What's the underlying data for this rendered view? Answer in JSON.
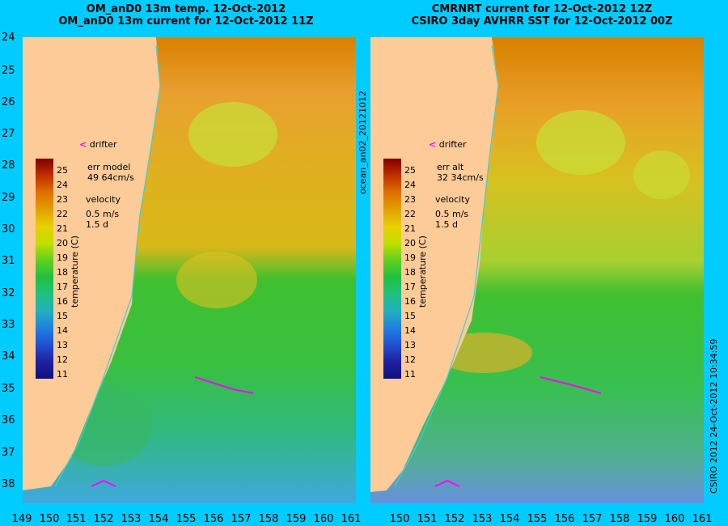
{
  "left_title": {
    "line1": "OM_anD0 13m temp. 12-Oct-2012",
    "line2": "OM_anD0 13m current for 12-Oct-2012 11Z"
  },
  "right_title": {
    "line1": "CMRNRT current for 12-Oct-2012 12Z",
    "line2": "CSIRO 3day AVHRR SST for 12-Oct-2012 00Z"
  },
  "y_ticks": [
    "24",
    "25",
    "26",
    "27",
    "28",
    "29",
    "30",
    "31",
    "32",
    "33",
    "34",
    "35",
    "36",
    "37",
    "38"
  ],
  "x_ticks": [
    "149",
    "150",
    "151",
    "152",
    "153",
    "154",
    "155",
    "156",
    "157",
    "158",
    "159",
    "160",
    "161"
  ],
  "x_ticks_right": [
    "150",
    "151",
    "152",
    "153",
    "154",
    "155",
    "156",
    "157",
    "158",
    "159",
    "160",
    "161"
  ],
  "left_legend": {
    "drifter": "drifter",
    "err_label": "err model",
    "err_value": "49 64cm/s",
    "velocity_label": "velocity",
    "velocity_value": "0.5 m/s",
    "velocity_time": "1.5 d"
  },
  "right_legend": {
    "drifter": "drifter",
    "err_label": "err alt",
    "err_value": "32 34cm/s",
    "velocity_label": "velocity",
    "velocity_value": "0.5 m/s",
    "velocity_time": "1.5 d"
  },
  "colorbar": {
    "label": "temperature (C)",
    "ticks": [
      "25",
      "24",
      "23",
      "22",
      "21",
      "20",
      "19",
      "18",
      "17",
      "16",
      "15",
      "14",
      "13",
      "12",
      "11"
    ]
  },
  "side_text": {
    "middle": "ocean_an02_20121012",
    "right": "CSIRO 2012   24-Oct-2012 10:34:59"
  },
  "colors": {
    "background": "#00ccff",
    "land": "#fccb98",
    "warm": "#e08a10",
    "mid": "#d8d020",
    "green": "#38c030",
    "cool": "#30a8c8",
    "drifter": "#ff00ff"
  }
}
